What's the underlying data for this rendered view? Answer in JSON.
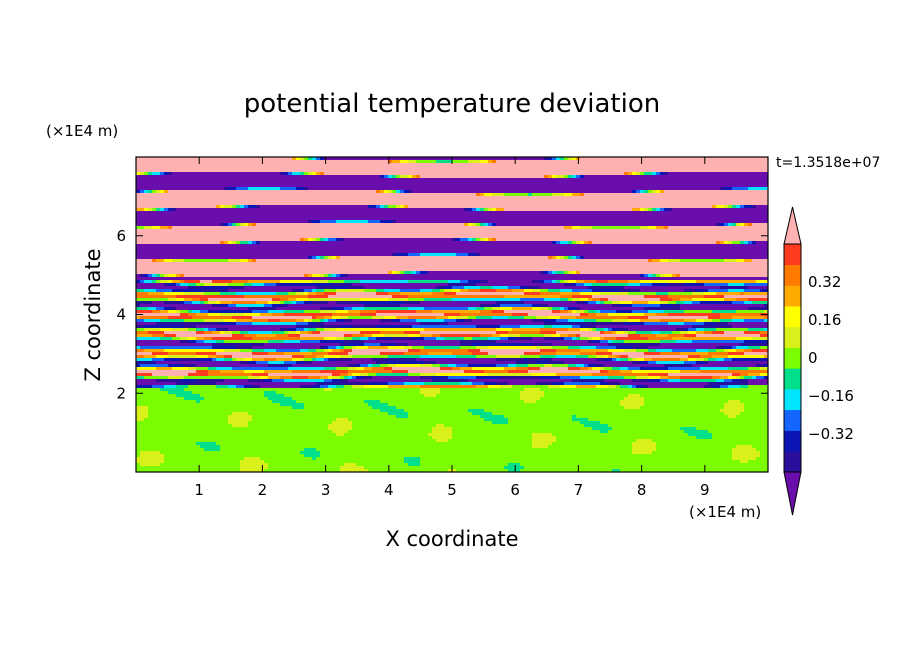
{
  "chart_data": {
    "type": "heatmap",
    "title": "potential temperature deviation",
    "xlabel": "X coordinate",
    "ylabel": "Z coordinate",
    "x_unit": "(×1E4 m)",
    "y_unit": "(×1E4 m)",
    "time_label": "t=1.3518e+07",
    "xlim": [
      0,
      10
    ],
    "ylim": [
      0,
      8
    ],
    "x_ticks": [
      "1",
      "2",
      "3",
      "4",
      "5",
      "6",
      "7",
      "8",
      "9"
    ],
    "y_ticks": [
      "2",
      "4",
      "6"
    ],
    "colorbar": {
      "levels": [
        -0.48,
        -0.4,
        -0.32,
        -0.24,
        -0.16,
        -0.08,
        0,
        0.08,
        0.16,
        0.24,
        0.32,
        0.4,
        0.48
      ],
      "tick_labels": [
        "0.32",
        "0.16",
        "0",
        "−0.16",
        "−0.32"
      ],
      "colors_low_to_high": [
        "#6a0dad",
        "#2a0f9a",
        "#0b16b4",
        "#1565ff",
        "#00e5ff",
        "#00e08a",
        "#7cfc00",
        "#d9f01a",
        "#ffff00",
        "#ffaa00",
        "#ff7a00",
        "#ff3b20",
        "#ffb0b0"
      ],
      "extend": "both"
    },
    "bands": [
      {
        "z_range": [
          0,
          2.1
        ],
        "description_values": [
          0.0,
          0.08
        ],
        "colors": [
          "#00e08a",
          "#7cfc00"
        ]
      },
      {
        "z_range": [
          2.1,
          4.9
        ],
        "description_values": [
          -0.48,
          0.48
        ],
        "colors": "mixed"
      },
      {
        "z_range": [
          4.9,
          8.0
        ],
        "description_values": [
          -0.48,
          0.48
        ],
        "colors": [
          "#6a0dad",
          "#ffb0b0"
        ]
      }
    ]
  }
}
